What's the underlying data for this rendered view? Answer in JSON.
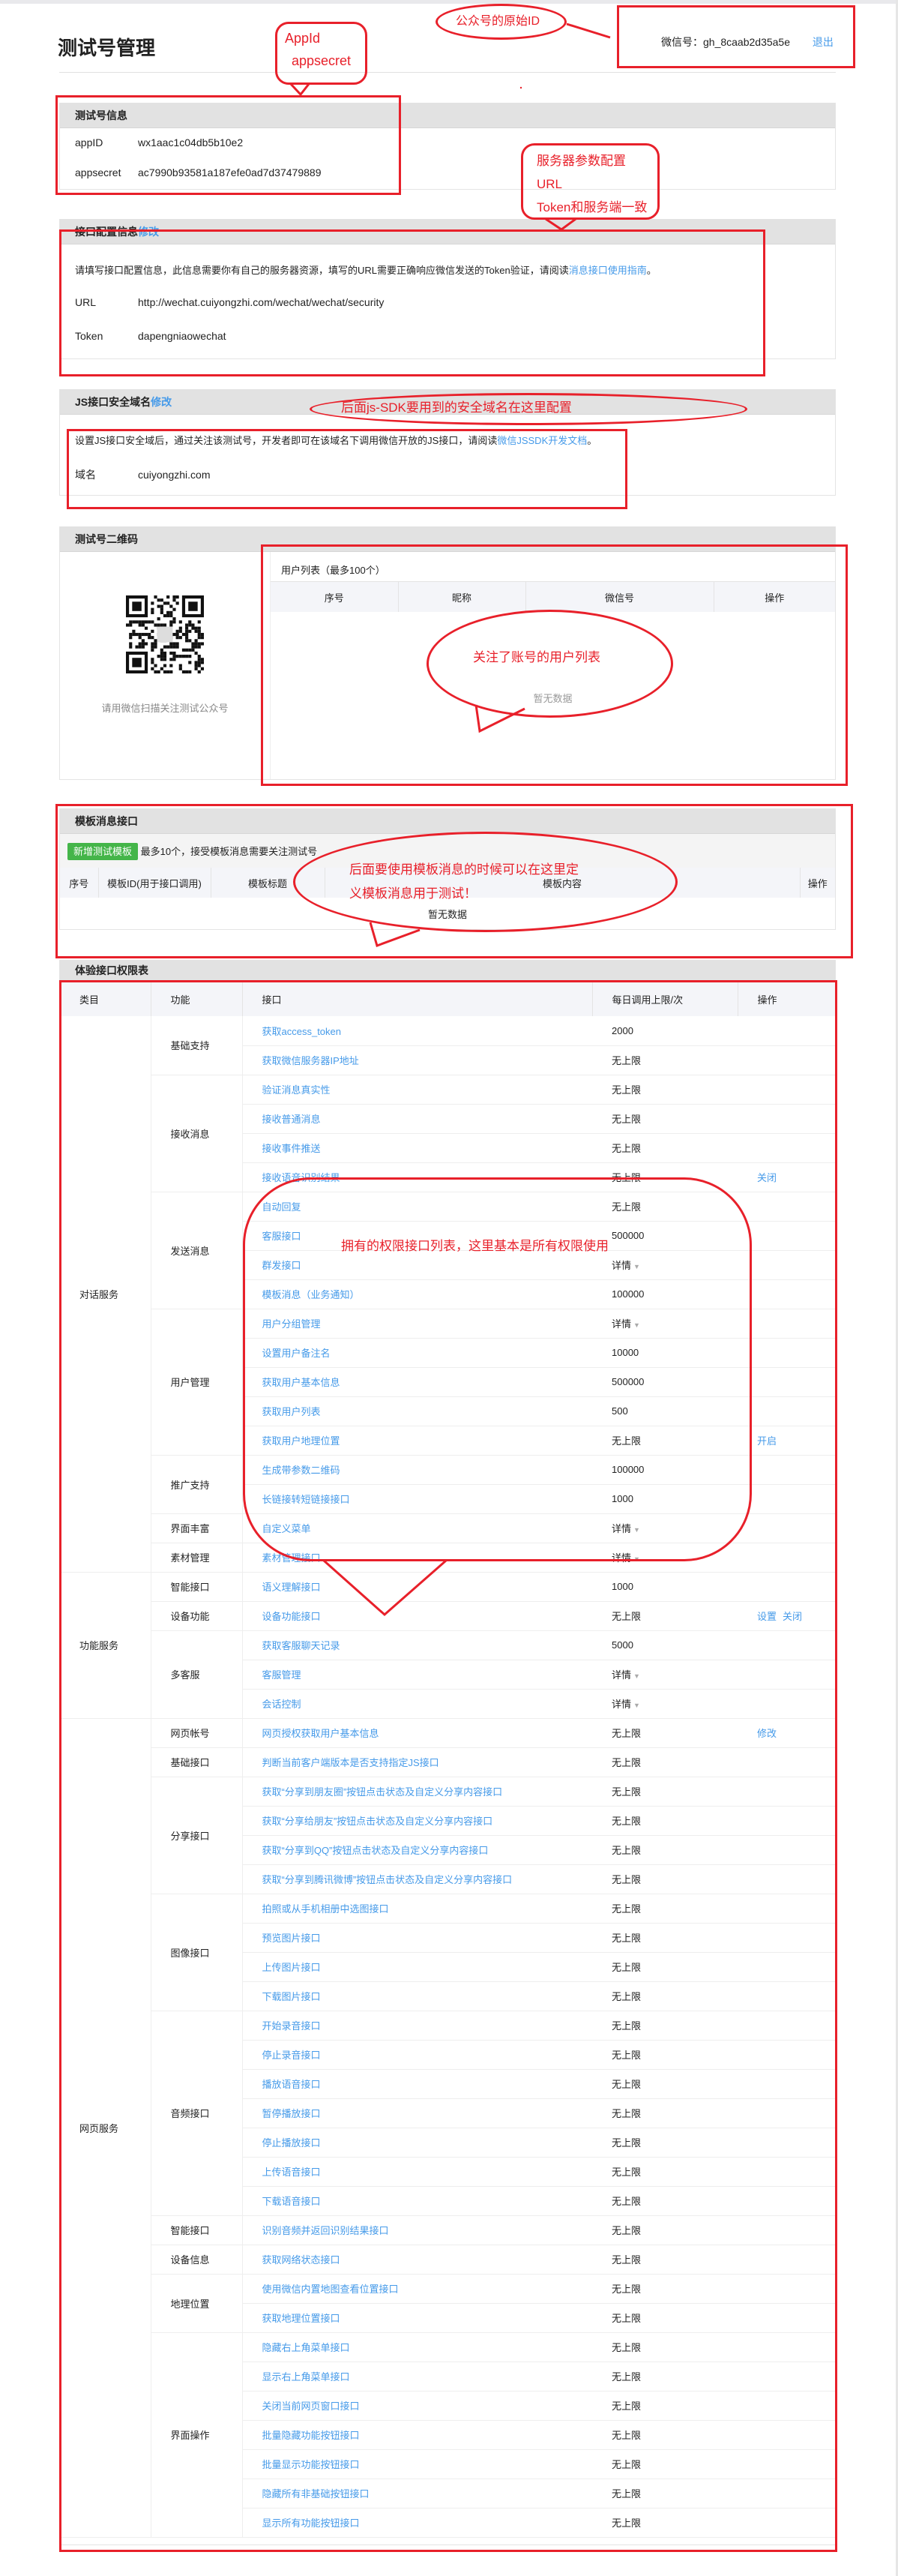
{
  "header": {
    "title": "测试号管理",
    "wechat_label": "微信号：",
    "wechat_id": "gh_8caab2d35a5e",
    "logout": "退出"
  },
  "test_info": {
    "title": "测试号信息",
    "appid_label": "appID",
    "appid": "wx1aac1c04db5b10e2",
    "secret_label": "appsecret",
    "secret": "ac7990b93581a187efe0ad7d37479889"
  },
  "iface_config": {
    "title": "接口配置信息",
    "edit": "修改",
    "desc": "请填写接口配置信息，此信息需要你有自己的服务器资源，填写的URL需要正确响应微信发送的Token验证，请阅读",
    "desc_link": "消息接口使用指南",
    "desc_end": "。",
    "url_label": "URL",
    "url": "http://wechat.cuiyongzhi.com/wechat/wechat/security",
    "token_label": "Token",
    "token": "dapengniaowechat"
  },
  "js_domain": {
    "title": "JS接口安全域名",
    "edit": "修改",
    "desc": "设置JS接口安全域后，通过关注该测试号，开发者即可在该域名下调用微信开放的JS接口，请阅读",
    "desc_link": "微信JSSDK开发文档",
    "desc_end": "。",
    "domain_label": "域名",
    "domain": "cuiyongzhi.com"
  },
  "qrcode": {
    "title": "测试号二维码",
    "caption": "请用微信扫描关注测试公众号",
    "user_list_title": "用户列表（最多100个）",
    "columns": [
      "序号",
      "昵称",
      "微信号",
      "操作"
    ],
    "empty": "暂无数据"
  },
  "template": {
    "title": "模板消息接口",
    "add_button": "新增测试模板",
    "note": "最多10个，接受模板消息需要关注测试号",
    "columns": [
      "序号",
      "模板ID(用于接口调用)",
      "模板标题",
      "模板内容",
      "操作"
    ],
    "empty": "暂无数据"
  },
  "permissions": {
    "title": "体验接口权限表",
    "columns": [
      "类目",
      "功能",
      "接口",
      "每日调用上限/次",
      "操作"
    ],
    "categories": [
      {
        "name": "对话服务",
        "functions": [
          {
            "name": "基础支持",
            "apis": [
              {
                "name": "获取access_token",
                "limit": "2000"
              },
              {
                "name": "获取微信服务器IP地址",
                "limit": "无上限"
              }
            ]
          },
          {
            "name": "接收消息",
            "apis": [
              {
                "name": "验证消息真实性",
                "limit": "无上限"
              },
              {
                "name": "接收普通消息",
                "limit": "无上限"
              },
              {
                "name": "接收事件推送",
                "limit": "无上限"
              },
              {
                "name": "接收语音识别结果",
                "limit": "无上限",
                "ops": [
                  "关闭"
                ]
              }
            ]
          },
          {
            "name": "发送消息",
            "apis": [
              {
                "name": "自动回复",
                "limit": "无上限"
              },
              {
                "name": "客服接口",
                "limit": "500000"
              },
              {
                "name": "群发接口",
                "limit": "详情",
                "dropdown": true
              },
              {
                "name": "模板消息（业务通知）",
                "limit": "100000"
              }
            ]
          },
          {
            "name": "用户管理",
            "apis": [
              {
                "name": "用户分组管理",
                "limit": "详情",
                "dropdown": true
              },
              {
                "name": "设置用户备注名",
                "limit": "10000"
              },
              {
                "name": "获取用户基本信息",
                "limit": "500000"
              },
              {
                "name": "获取用户列表",
                "limit": "500"
              },
              {
                "name": "获取用户地理位置",
                "limit": "无上限",
                "ops": [
                  "开启"
                ]
              }
            ]
          },
          {
            "name": "推广支持",
            "apis": [
              {
                "name": "生成带参数二维码",
                "limit": "100000"
              },
              {
                "name": "长链接转短链接接口",
                "limit": "1000"
              }
            ]
          },
          {
            "name": "界面丰富",
            "apis": [
              {
                "name": "自定义菜单",
                "limit": "详情",
                "dropdown": true
              }
            ]
          },
          {
            "name": "素材管理",
            "apis": [
              {
                "name": "素材管理接口",
                "limit": "详情",
                "dropdown": true
              }
            ]
          }
        ]
      },
      {
        "name": "功能服务",
        "functions": [
          {
            "name": "智能接口",
            "apis": [
              {
                "name": "语义理解接口",
                "limit": "1000"
              }
            ]
          },
          {
            "name": "设备功能",
            "apis": [
              {
                "name": "设备功能接口",
                "limit": "无上限",
                "ops": [
                  "设置",
                  "关闭"
                ]
              }
            ]
          },
          {
            "name": "多客服",
            "apis": [
              {
                "name": "获取客服聊天记录",
                "limit": "5000"
              },
              {
                "name": "客服管理",
                "limit": "详情",
                "dropdown": true
              },
              {
                "name": "会话控制",
                "limit": "详情",
                "dropdown": true
              }
            ]
          }
        ]
      },
      {
        "name": "网页服务",
        "functions": [
          {
            "name": "网页帐号",
            "apis": [
              {
                "name": "网页授权获取用户基本信息",
                "limit": "无上限",
                "ops": [
                  "修改"
                ]
              }
            ]
          },
          {
            "name": "基础接口",
            "apis": [
              {
                "name": "判断当前客户端版本是否支持指定JS接口",
                "limit": "无上限"
              }
            ]
          },
          {
            "name": "分享接口",
            "apis": [
              {
                "name": "获取“分享到朋友圈”按钮点击状态及自定义分享内容接口",
                "limit": "无上限"
              },
              {
                "name": "获取“分享给朋友”按钮点击状态及自定义分享内容接口",
                "limit": "无上限"
              },
              {
                "name": "获取“分享到QQ”按钮点击状态及自定义分享内容接口",
                "limit": "无上限"
              },
              {
                "name": "获取“分享到腾讯微博”按钮点击状态及自定义分享内容接口",
                "limit": "无上限"
              }
            ]
          },
          {
            "name": "图像接口",
            "apis": [
              {
                "name": "拍照或从手机相册中选图接口",
                "limit": "无上限"
              },
              {
                "name": "预览图片接口",
                "limit": "无上限"
              },
              {
                "name": "上传图片接口",
                "limit": "无上限"
              },
              {
                "name": "下载图片接口",
                "limit": "无上限"
              }
            ]
          },
          {
            "name": "音频接口",
            "apis": [
              {
                "name": "开始录音接口",
                "limit": "无上限"
              },
              {
                "name": "停止录音接口",
                "limit": "无上限"
              },
              {
                "name": "播放语音接口",
                "limit": "无上限"
              },
              {
                "name": "暂停播放接口",
                "limit": "无上限"
              },
              {
                "name": "停止播放接口",
                "limit": "无上限"
              },
              {
                "name": "上传语音接口",
                "limit": "无上限"
              },
              {
                "name": "下载语音接口",
                "limit": "无上限"
              }
            ]
          },
          {
            "name": "智能接口",
            "apis": [
              {
                "name": "识别音频并返回识别结果接口",
                "limit": "无上限"
              }
            ]
          },
          {
            "name": "设备信息",
            "apis": [
              {
                "name": "获取网络状态接口",
                "limit": "无上限"
              }
            ]
          },
          {
            "name": "地理位置",
            "apis": [
              {
                "name": "使用微信内置地图查看位置接口",
                "limit": "无上限"
              },
              {
                "name": "获取地理位置接口",
                "limit": "无上限"
              }
            ]
          },
          {
            "name": "界面操作",
            "apis": [
              {
                "name": "隐藏右上角菜单接口",
                "limit": "无上限"
              },
              {
                "name": "显示右上角菜单接口",
                "limit": "无上限"
              },
              {
                "name": "关闭当前网页窗口接口",
                "limit": "无上限"
              },
              {
                "name": "批量隐藏功能按钮接口",
                "limit": "无上限"
              },
              {
                "name": "批量显示功能按钮接口",
                "limit": "无上限"
              },
              {
                "name": "隐藏所有非基础按钮接口",
                "limit": "无上限"
              },
              {
                "name": "显示所有功能按钮接口",
                "limit": "无上限"
              }
            ]
          }
        ]
      }
    ]
  },
  "annotations": {
    "appid_bubble": [
      "AppId",
      "appsecret"
    ],
    "original_id": "公众号的原始ID",
    "server_bubble": [
      "服务器参数配置",
      "URL",
      "Token和服务端一致"
    ],
    "js_note": "后面js-SDK要用到的安全域名在这里配置",
    "user_list_note": "关注了账号的用户列表",
    "template_note": [
      "后面要使用模板消息的时候可以在这里定",
      "义模板消息用于测试！"
    ],
    "perm_note": "拥有的权限接口列表，这里基本是所有权限使用"
  },
  "colors": {
    "link": "#459ae9",
    "annotation": "#e8202a",
    "button": "#44b549",
    "panel_header": "#e2e2e2"
  }
}
